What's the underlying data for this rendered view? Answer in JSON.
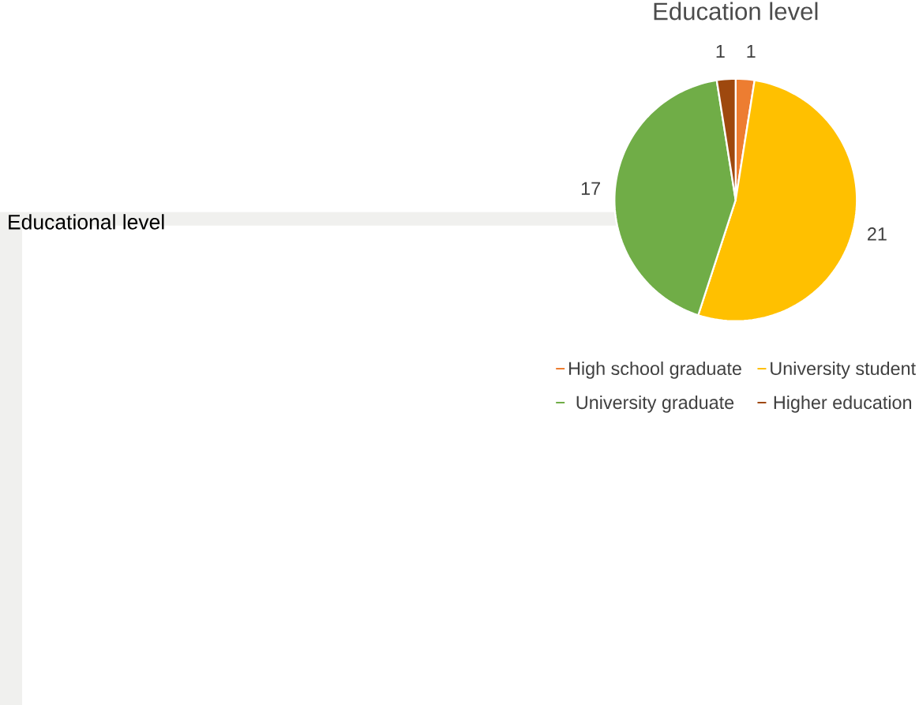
{
  "chart_data": {
    "type": "pie",
    "title": "Education level",
    "categories": [
      "High school graduate",
      "University student",
      "University graduate",
      "Higher education"
    ],
    "values": [
      1,
      21,
      17,
      1
    ],
    "colors": [
      "#ed7d31",
      "#ffc000",
      "#70ad47",
      "#9e480e"
    ],
    "data_labels": true,
    "legend": "bottom",
    "annotations": [
      "Educational level"
    ]
  }
}
